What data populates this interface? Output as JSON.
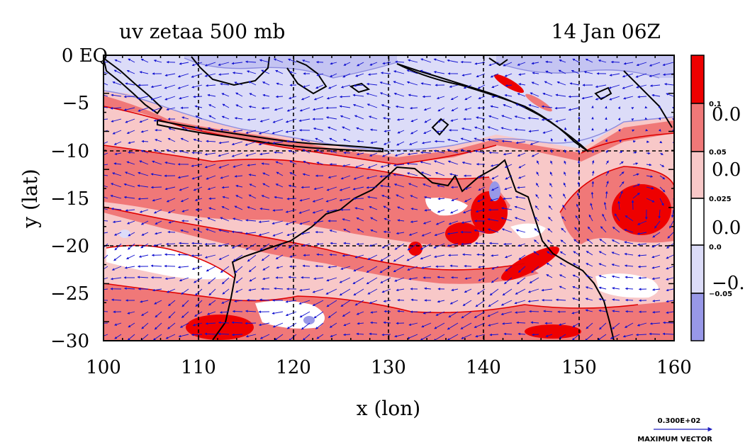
{
  "title_left": "uv zetaa 500 mb",
  "title_right": "14 Jan 06Z",
  "xlabel": "x (lon)",
  "ylabel": "y (lat)",
  "x_ticks": [
    "100",
    "110",
    "120",
    "130",
    "140",
    "150",
    "160"
  ],
  "y_ticks": [
    "0 EQ",
    "−5",
    "−10",
    "−15",
    "−20",
    "−25",
    "−30"
  ],
  "colorbar": {
    "colors": [
      "#ee0000",
      "#f07878",
      "#f8c8c8",
      "#ffffff",
      "#dcdcf8",
      "#9898e8"
    ],
    "small_labels": [
      "0.1",
      "0.05",
      "0.025",
      "0.0",
      "−0.05"
    ],
    "big_labels": [
      "0.0",
      "0.0",
      "0.0",
      "−0."
    ]
  },
  "vector_key": {
    "value": "0.300E+02",
    "label": "MAXIMUM VECTOR"
  },
  "chart_data": {
    "type": "heatmap",
    "title": "uv zetaa 500 mb",
    "subtitle": "14 Jan 06Z",
    "xlabel": "x (lon)",
    "ylabel": "y (lat)",
    "xlim": [
      100,
      160
    ],
    "ylim": [
      -30,
      0
    ],
    "grid": true,
    "legend": "colorbar right",
    "contour_levels": [
      -0.05,
      0.0,
      0.025,
      0.05,
      0.1
    ]
  }
}
